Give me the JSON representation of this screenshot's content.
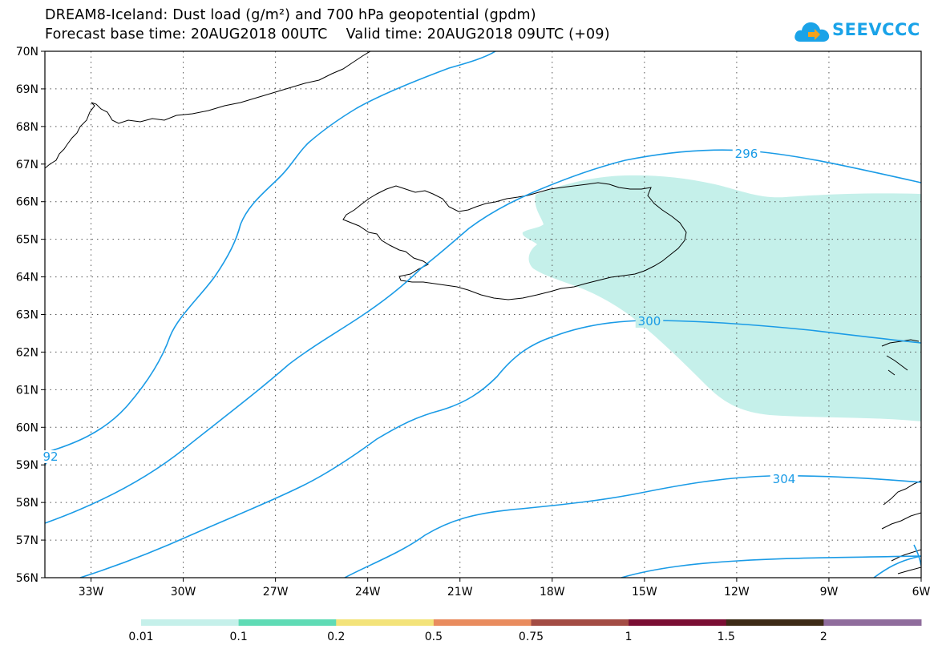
{
  "title_line1": "DREAM8-Iceland: Dust load (g/m²) and 700 hPa geopotential (gpdm)",
  "title_line2": "Forecast base time: 20AUG2018 00UTC    Valid time: 20AUG2018 09UTC (+09)",
  "logo": {
    "text": "SEEVCCC",
    "icon": "cloud-arrow-icon"
  },
  "map": {
    "lon_range": [
      -34.5,
      -6
    ],
    "lat_range": [
      56,
      70
    ],
    "grid": "dotted",
    "lat_labels": [
      "70N",
      "69N",
      "68N",
      "67N",
      "66N",
      "65N",
      "64N",
      "63N",
      "62N",
      "61N",
      "60N",
      "59N",
      "58N",
      "57N",
      "56N"
    ],
    "lon_labels": [
      "33W",
      "30W",
      "27W",
      "24W",
      "21W",
      "18W",
      "15W",
      "12W",
      "9W",
      "6W"
    ],
    "dust_color": "#c5f0ea",
    "contour_color": "#1a9be6",
    "coastline_color": "#000000",
    "contours": [
      {
        "label": "92"
      },
      {
        "label": "296"
      },
      {
        "label": "300"
      },
      {
        "label": "304"
      },
      {
        "label": ""
      },
      {
        "label": ""
      },
      {
        "label": ""
      },
      {
        "label": ""
      }
    ]
  },
  "colorbar": {
    "colors": [
      "#c5f0ea",
      "#5fdbb5",
      "#f3e37a",
      "#e98c5e",
      "#a34c44",
      "#7a0e33",
      "#3d2a16",
      "#8f6c9c"
    ],
    "labels": [
      "0.01",
      "0.1",
      "0.2",
      "0.5",
      "0.75",
      "1",
      "1.5",
      "2"
    ]
  }
}
